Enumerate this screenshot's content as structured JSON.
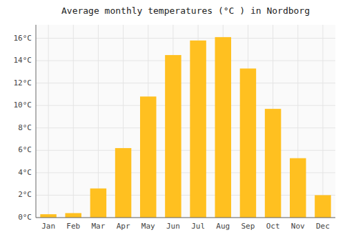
{
  "chart_data": {
    "type": "bar",
    "title": "Average monthly temperatures (°C ) in Nordborg",
    "categories": [
      "Jan",
      "Feb",
      "Mar",
      "Apr",
      "May",
      "Jun",
      "Jul",
      "Aug",
      "Sep",
      "Oct",
      "Nov",
      "Dec"
    ],
    "values": [
      0.3,
      0.4,
      2.6,
      6.2,
      10.8,
      14.5,
      15.8,
      16.1,
      13.3,
      9.7,
      5.3,
      2.0
    ],
    "color": "#FFC020",
    "ylim": [
      0,
      17.2
    ],
    "yticks": [
      {
        "value": 0,
        "label": "0°C"
      },
      {
        "value": 2,
        "label": "2°C"
      },
      {
        "value": 4,
        "label": "4°C"
      },
      {
        "value": 6,
        "label": "6°C"
      },
      {
        "value": 8,
        "label": "8°C"
      },
      {
        "value": 10,
        "label": "10°C"
      },
      {
        "value": 12,
        "label": "12°C"
      },
      {
        "value": 14,
        "label": "14°C"
      },
      {
        "value": 16,
        "label": "16°C"
      }
    ],
    "grid": true
  }
}
